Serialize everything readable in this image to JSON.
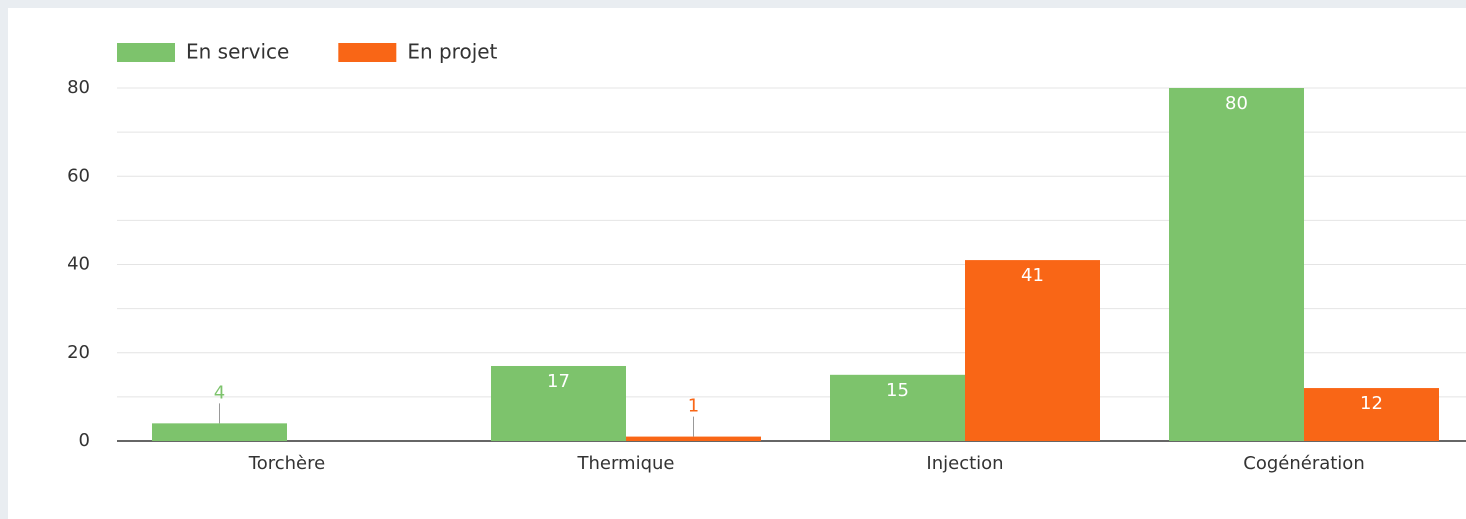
{
  "chart_data": {
    "type": "bar",
    "categories": [
      "Torchère",
      "Thermique",
      "Injection",
      "Cogénération"
    ],
    "series": [
      {
        "name": "En service",
        "color": "#7dc36c",
        "values": [
          4,
          17,
          15,
          80
        ]
      },
      {
        "name": "En projet",
        "color": "#f96616",
        "values": [
          null,
          1,
          41,
          12
        ]
      }
    ],
    "ylim": [
      0,
      80
    ],
    "yticks": [
      0,
      20,
      40,
      60,
      80
    ],
    "yminor_ticks": [
      10,
      30,
      50,
      70
    ],
    "grid": true,
    "legend": "top-left"
  }
}
